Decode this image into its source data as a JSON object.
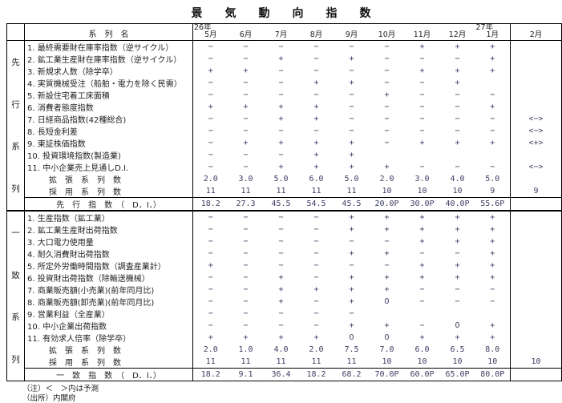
{
  "title": "景気動向指数",
  "table": {
    "series_header": "系　列　名",
    "columns": [
      {
        "year": "26年",
        "month": "5月"
      },
      {
        "year": "",
        "month": "6月"
      },
      {
        "year": "",
        "month": "7月"
      },
      {
        "year": "",
        "month": "8月"
      },
      {
        "year": "",
        "month": "9月"
      },
      {
        "year": "",
        "month": "10月"
      },
      {
        "year": "",
        "month": "11月"
      },
      {
        "year": "",
        "month": "12月"
      },
      {
        "year": "27年",
        "month": "1月"
      },
      {
        "year": "",
        "month": "2月"
      }
    ],
    "sections": [
      {
        "id": "leading",
        "label_chars": [
          "先",
          "行",
          "系",
          "列"
        ],
        "rows": [
          {
            "name": " 1. 最終需要財在庫率指数（逆サイクル）",
            "values": [
              "−",
              "−",
              "−",
              "−",
              "−",
              "−",
              "+",
              "+",
              "+",
              ""
            ]
          },
          {
            "name": " 2. 鉱工業生産財在庫率指数（逆サイクル）",
            "values": [
              "−",
              "−",
              "+",
              "−",
              "+",
              "−",
              "−",
              "−",
              "+",
              ""
            ]
          },
          {
            "name": " 3. 新規求人数（除学卒）",
            "values": [
              "+",
              "+",
              "−",
              "−",
              "−",
              "−",
              "+",
              "+",
              "+",
              ""
            ]
          },
          {
            "name": " 4. 実質機械受注（船舶・電力を除く民需）",
            "values": [
              "−",
              "−",
              "−",
              "+",
              "+",
              "−",
              "−",
              "+",
              "",
              ""
            ]
          },
          {
            "name": " 5. 新設住宅着工床面積",
            "values": [
              "−",
              "−",
              "−",
              "−",
              "−",
              "+",
              "−",
              "−",
              "−",
              ""
            ]
          },
          {
            "name": " 6. 消費者態度指数",
            "values": [
              "+",
              "+",
              "+",
              "+",
              "−",
              "−",
              "−",
              "−",
              "+",
              ""
            ]
          },
          {
            "name": " 7. 日経商品指数(42種総合)",
            "values": [
              "−",
              "−",
              "+",
              "+",
              "−",
              "−",
              "−",
              "−",
              "−",
              "<−>"
            ]
          },
          {
            "name": " 8. 長短金利差",
            "values": [
              "−",
              "−",
              "−",
              "−",
              "−",
              "−",
              "−",
              "−",
              "−",
              "<−>"
            ]
          },
          {
            "name": " 9. 東証株価指数",
            "values": [
              "−",
              "+",
              "+",
              "+",
              "+",
              "−",
              "+",
              "+",
              "+",
              "<+>"
            ]
          },
          {
            "name": "10. 投資環境指数(製造業)",
            "values": [
              "−",
              "−",
              "−",
              "+",
              "+",
              "",
              "",
              "",
              "",
              ""
            ]
          },
          {
            "name": "11. 中小企業売上見通しD.I.",
            "values": [
              "−",
              "−",
              "+",
              "+",
              "+",
              "+",
              "−",
              "−",
              "−",
              "<−>"
            ]
          }
        ],
        "summary_rows": [
          {
            "name": "拡　張　系　列　数",
            "values": [
              "2.0",
              "3.0",
              "5.0",
              "6.0",
              "5.0",
              "2.0",
              "3.0",
              "4.0",
              "5.0",
              ""
            ]
          },
          {
            "name": "採　用　系　列　数",
            "values": [
              "11",
              "11",
              "11",
              "11",
              "11",
              "10",
              "10",
              "10",
              "9",
              "9"
            ]
          }
        ],
        "di_row": {
          "name": "先　行　指　数　（　D．I．）",
          "values": [
            "18.2",
            "27.3",
            "45.5",
            "54.5",
            "45.5",
            "20.0P",
            "30.0P",
            "40.0P",
            "55.6P",
            ""
          ]
        }
      },
      {
        "id": "coincident",
        "label_chars": [
          "一",
          "致",
          "系",
          "列"
        ],
        "rows": [
          {
            "name": " 1. 生産指数（鉱工業）",
            "values": [
              "−",
              "−",
              "−",
              "−",
              "+",
              "+",
              "+",
              "+",
              "+",
              ""
            ]
          },
          {
            "name": " 2. 鉱工業生産財出荷指数",
            "values": [
              "−",
              "−",
              "−",
              "−",
              "+",
              "+",
              "+",
              "+",
              "+",
              ""
            ]
          },
          {
            "name": " 3. 大口電力使用量",
            "values": [
              "−",
              "−",
              "−",
              "−",
              "−",
              "−",
              "+",
              "+",
              "+",
              ""
            ]
          },
          {
            "name": " 4. 耐久消費財出荷指数",
            "values": [
              "−",
              "−",
              "−",
              "−",
              "+",
              "+",
              "−",
              "−",
              "+",
              ""
            ]
          },
          {
            "name": " 5. 所定外労働時間指数（調査産業計）",
            "values": [
              "+",
              "−",
              "−",
              "−",
              "−",
              "−",
              "+",
              "+",
              "+",
              ""
            ]
          },
          {
            "name": " 6. 投資財出荷指数（除輸送機械）",
            "values": [
              "−",
              "−",
              "+",
              "−",
              "+",
              "+",
              "+",
              "+",
              "+",
              ""
            ]
          },
          {
            "name": " 7. 商業販売額(小売業)(前年同月比)",
            "values": [
              "−",
              "−",
              "+",
              "+",
              "+",
              "+",
              "−",
              "−",
              "−",
              ""
            ]
          },
          {
            "name": " 8. 商業販売額(卸売業)(前年同月比)",
            "values": [
              "−",
              "−",
              "+",
              "−",
              "+",
              "O",
              "−",
              "−",
              "−",
              ""
            ]
          },
          {
            "name": " 9. 営業利益（全産業）",
            "values": [
              "−",
              "−",
              "−",
              "−",
              "−",
              "",
              "",
              "",
              "",
              ""
            ]
          },
          {
            "name": "10. 中小企業出荷指数",
            "values": [
              "−",
              "−",
              "−",
              "−",
              "+",
              "+",
              "−",
              "O",
              "+",
              ""
            ]
          },
          {
            "name": "11. 有効求人倍率（除学卒）",
            "values": [
              "+",
              "+",
              "+",
              "+",
              "O",
              "O",
              "+",
              "+",
              "+",
              ""
            ]
          }
        ],
        "summary_rows": [
          {
            "name": "拡　張　系　列　数",
            "values": [
              "2.0",
              "1.0",
              "4.0",
              "2.0",
              "7.5",
              "7.0",
              "6.0",
              "6.5",
              "8.0",
              ""
            ]
          },
          {
            "name": "採　用　系　列　数",
            "values": [
              "11",
              "11",
              "11",
              "11",
              "11",
              "10",
              "10",
              "10",
              "10",
              "10"
            ]
          }
        ],
        "di_row": {
          "name": "一　致　指　数　（　D．I．）",
          "values": [
            "18.2",
            "9.1",
            "36.4",
            "18.2",
            "68.2",
            "70.0P",
            "60.0P",
            "65.0P",
            "80.0P",
            ""
          ]
        }
      }
    ]
  },
  "notes": [
    "（注）＜　＞内は予測",
    "（出所）内閣府"
  ]
}
